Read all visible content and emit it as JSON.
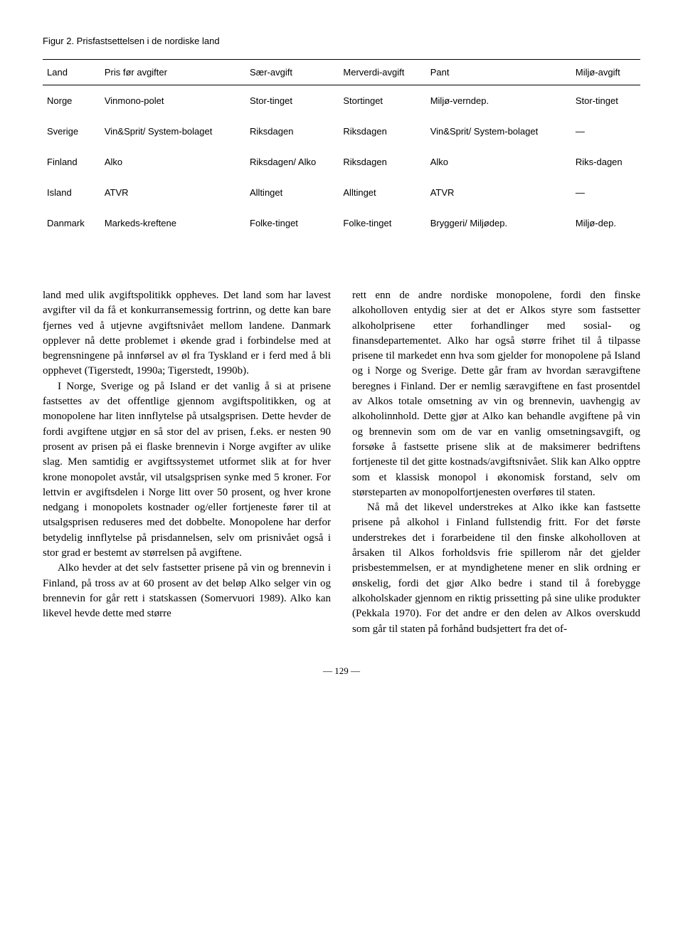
{
  "figure_caption": "Figur 2. Prisfastsettelsen i de nordiske land",
  "table": {
    "columns": [
      "Land",
      "Pris før avgifter",
      "Sær-avgift",
      "Merverdi-avgift",
      "Pant",
      "Miljø-avgift"
    ],
    "rows": [
      [
        "Norge",
        "Vinmono-polet",
        "Stor-tinget",
        "Stortinget",
        "Miljø-verndep.",
        "Stor-tinget"
      ],
      [
        "Sverige",
        "Vin&Sprit/ System-bolaget",
        "Riksdagen",
        "Riksdagen",
        "Vin&Sprit/ System-bolaget",
        "—"
      ],
      [
        "Finland",
        "Alko",
        "Riksdagen/ Alko",
        "Riksdagen",
        "Alko",
        "Riks-dagen"
      ],
      [
        "Island",
        "ATVR",
        "Alltinget",
        "Alltinget",
        "ATVR",
        "—"
      ],
      [
        "Danmark",
        "Markeds-kreftene",
        "Folke-tinget",
        "Folke-tinget",
        "Bryggeri/ Miljødep.",
        "Miljø-dep."
      ]
    ],
    "font_family": "Arial, Helvetica, sans-serif",
    "font_size": 13,
    "border_color": "#000000"
  },
  "body": {
    "left": {
      "p1": "land med ulik avgiftspolitikk oppheves. Det land som har lavest avgifter vil da få et konkurransemessig fortrinn, og dette kan bare fjernes ved å utjevne avgiftsnivået mellom landene. Danmark opplever nå dette problemet i økende grad i forbindelse med at begrensningene på innførsel av øl fra Tyskland er i ferd med å bli opphevet (Tigerstedt, 1990a; Tigerstedt, 1990b).",
      "p2": "I Norge, Sverige og på Island er det vanlig å si at prisene fastsettes av det offentlige gjennom avgiftspolitikken, og at monopolene har liten innflytelse på utsalgsprisen. Dette hevder de fordi avgiftene utgjør en så stor del av prisen, f.eks. er nesten 90 prosent av prisen på ei flaske brennevin i Norge avgifter av ulike slag. Men samtidig er avgiftssystemet utformet slik at for hver krone monopolet avstår, vil utsalgsprisen synke med 5 kroner. For lettvin er avgiftsdelen i Norge litt over 50 prosent, og hver krone nedgang i monopolets kostnader og/eller fortjeneste fører til at utsalgsprisen reduseres med det dobbelte. Monopolene har derfor betydelig innflytelse på prisdannelsen, selv om prisnivået også i stor grad er bestemt av størrelsen på avgiftene.",
      "p3": "Alko hevder at det selv fastsetter prisene på vin og brennevin i Finland, på tross av at 60 prosent av det beløp Alko selger vin og brennevin for går rett i statskassen (Somervuori 1989). Alko kan likevel hevde dette med større"
    },
    "right": {
      "p1": "rett enn de andre nordiske monopolene, fordi den finske alkoholloven entydig sier at det er Alkos styre som fastsetter alkoholprisene etter forhandlinger med sosial- og finansdepartementet. Alko har også større frihet til å tilpasse prisene til markedet enn hva som gjelder for monopolene på Island og i Norge og Sverige. Dette går fram av hvordan særavgiftene beregnes i Finland. Der er nemlig særavgiftene en fast prosentdel av Alkos totale omsetning av vin og brennevin, uavhengig av alkoholinnhold. Dette gjør at Alko kan behandle avgiftene på vin og brennevin som om de var en vanlig omsetningsavgift, og forsøke å fastsette prisene slik at de maksimerer bedriftens fortjeneste til det gitte kostnads/avgiftsnivået. Slik kan Alko opptre som et klassisk monopol i økonomisk forstand, selv om størsteparten av monopolfortjenesten overføres til staten.",
      "p2": "Nå må det likevel understrekes at Alko ikke kan fastsette prisene på alkohol i Finland fullstendig fritt. For det første understrekes det i forarbeidene til den finske alkoholloven at årsaken til Alkos forholdsvis frie spillerom når det gjelder prisbestemmelsen, er at myndighetene mener en slik ordning er ønskelig, fordi det gjør Alko bedre i stand til å forebygge alkoholskader gjennom en riktig prissetting på sine ulike produkter (Pekkala 1970). For det andre er den delen av Alkos overskudd som går til staten på forhånd budsjettert fra det of-"
    },
    "font_family": "Times New Roman, Times, serif",
    "font_size": 15,
    "line_height": 1.42
  },
  "page_number": "— 129 —"
}
